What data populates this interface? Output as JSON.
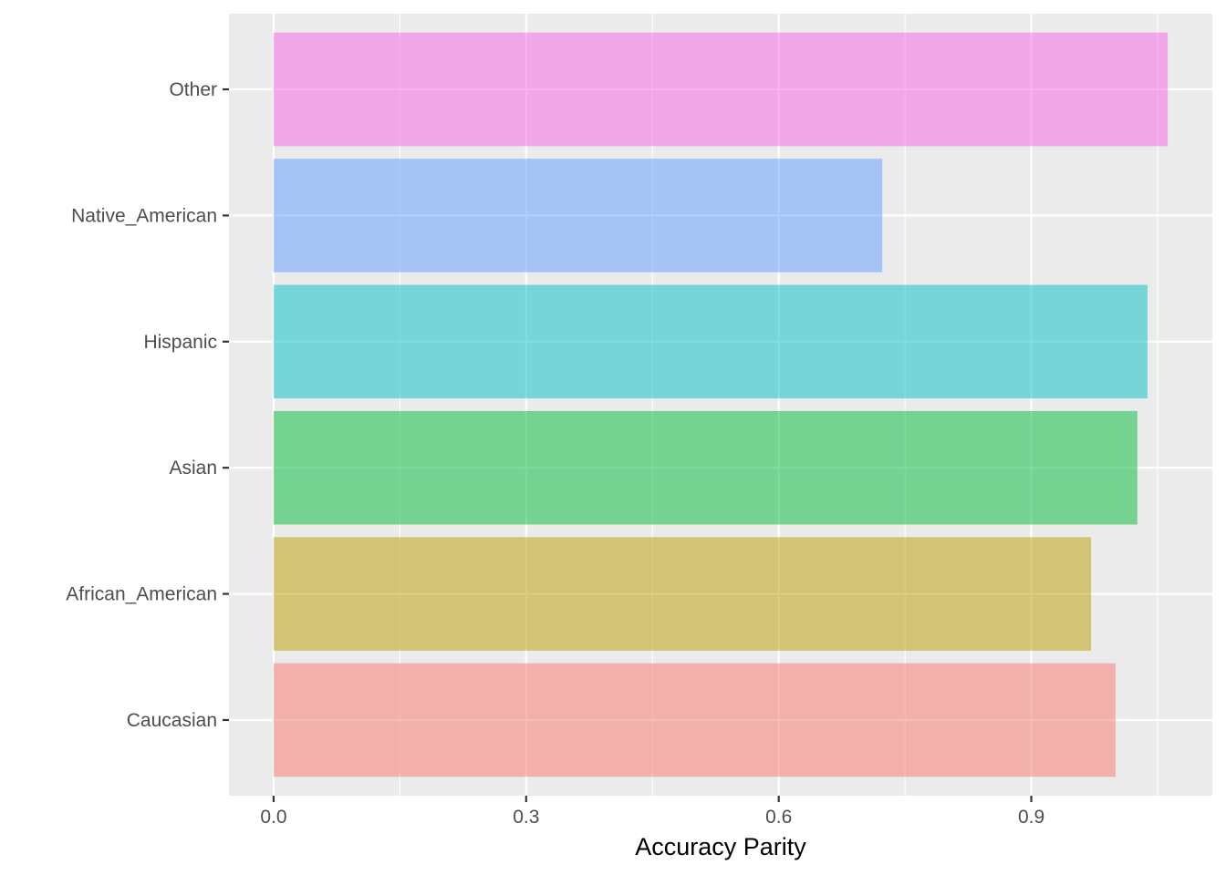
{
  "chart_data": {
    "type": "bar",
    "orientation": "horizontal",
    "categories": [
      "Caucasian",
      "African_American",
      "Asian",
      "Hispanic",
      "Native_American",
      "Other"
    ],
    "values": [
      1.0,
      0.971,
      1.026,
      1.038,
      0.723,
      1.062
    ],
    "colors": [
      "#F8766D",
      "#B79F00",
      "#00BA38",
      "#00BFC4",
      "#619CFF",
      "#F564E3"
    ],
    "xlabel": "Accuracy Parity",
    "ylabel": "",
    "xlim": [
      -0.053,
      1.115
    ],
    "x_ticks": [
      {
        "value": 0.0,
        "label": "0.0"
      },
      {
        "value": 0.3,
        "label": "0.3"
      },
      {
        "value": 0.6,
        "label": "0.6"
      },
      {
        "value": 0.9,
        "label": "0.9"
      }
    ],
    "x_minor_ticks": [
      0.15,
      0.45,
      0.75,
      1.05
    ],
    "grid": true,
    "legend": "none",
    "panel_background": "#EBEBEB",
    "grid_color": "#FFFFFF",
    "bar_opacity": 0.5
  }
}
